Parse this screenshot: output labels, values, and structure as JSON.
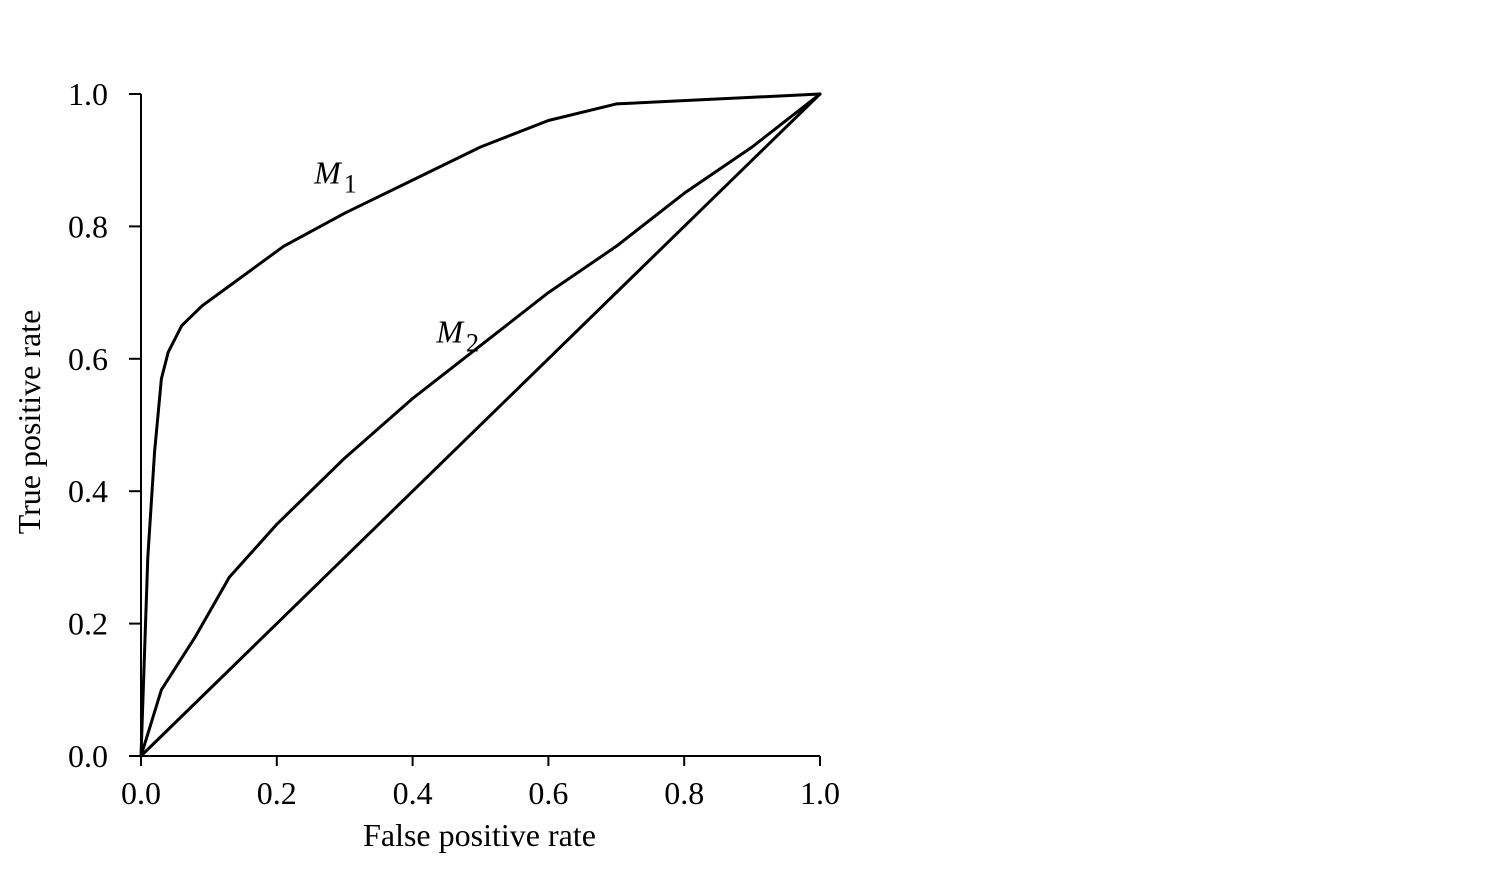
{
  "chart_data": {
    "type": "line",
    "xlabel": "False positive rate",
    "ylabel": "True positive rate",
    "xlim": [
      0.0,
      1.0
    ],
    "ylim": [
      0.0,
      1.0
    ],
    "x_ticks": [
      "0.0",
      "0.2",
      "0.4",
      "0.6",
      "0.8",
      "1.0"
    ],
    "y_ticks": [
      "0.0",
      "0.2",
      "0.4",
      "0.6",
      "0.8",
      "1.0"
    ],
    "grid": false,
    "legend": "none",
    "line_color": "#000000",
    "series": [
      {
        "name": "M1",
        "label_main": "M",
        "label_sub": "1",
        "x": [
          0.0,
          0.01,
          0.02,
          0.03,
          0.04,
          0.06,
          0.09,
          0.13,
          0.21,
          0.3,
          0.4,
          0.5,
          0.6,
          0.7,
          1.0
        ],
        "y": [
          0.0,
          0.3,
          0.46,
          0.57,
          0.61,
          0.65,
          0.68,
          0.71,
          0.77,
          0.82,
          0.87,
          0.92,
          0.96,
          0.985,
          1.0
        ]
      },
      {
        "name": "M2",
        "label_main": "M",
        "label_sub": "2",
        "x": [
          0.0,
          0.015,
          0.03,
          0.08,
          0.13,
          0.2,
          0.3,
          0.4,
          0.5,
          0.6,
          0.7,
          0.8,
          0.9,
          1.0
        ],
        "y": [
          0.0,
          0.05,
          0.1,
          0.18,
          0.27,
          0.35,
          0.45,
          0.54,
          0.62,
          0.7,
          0.77,
          0.85,
          0.92,
          1.0
        ]
      },
      {
        "name": "diagonal",
        "x": [
          0.0,
          1.0
        ],
        "y": [
          0.0,
          1.0
        ]
      }
    ],
    "annotations": [
      {
        "series": "M1",
        "text_main": "M",
        "text_sub": "1",
        "x": 0.255,
        "y": 0.865
      },
      {
        "series": "M2",
        "text_main": "M",
        "text_sub": "2",
        "x": 0.435,
        "y": 0.625
      }
    ]
  }
}
